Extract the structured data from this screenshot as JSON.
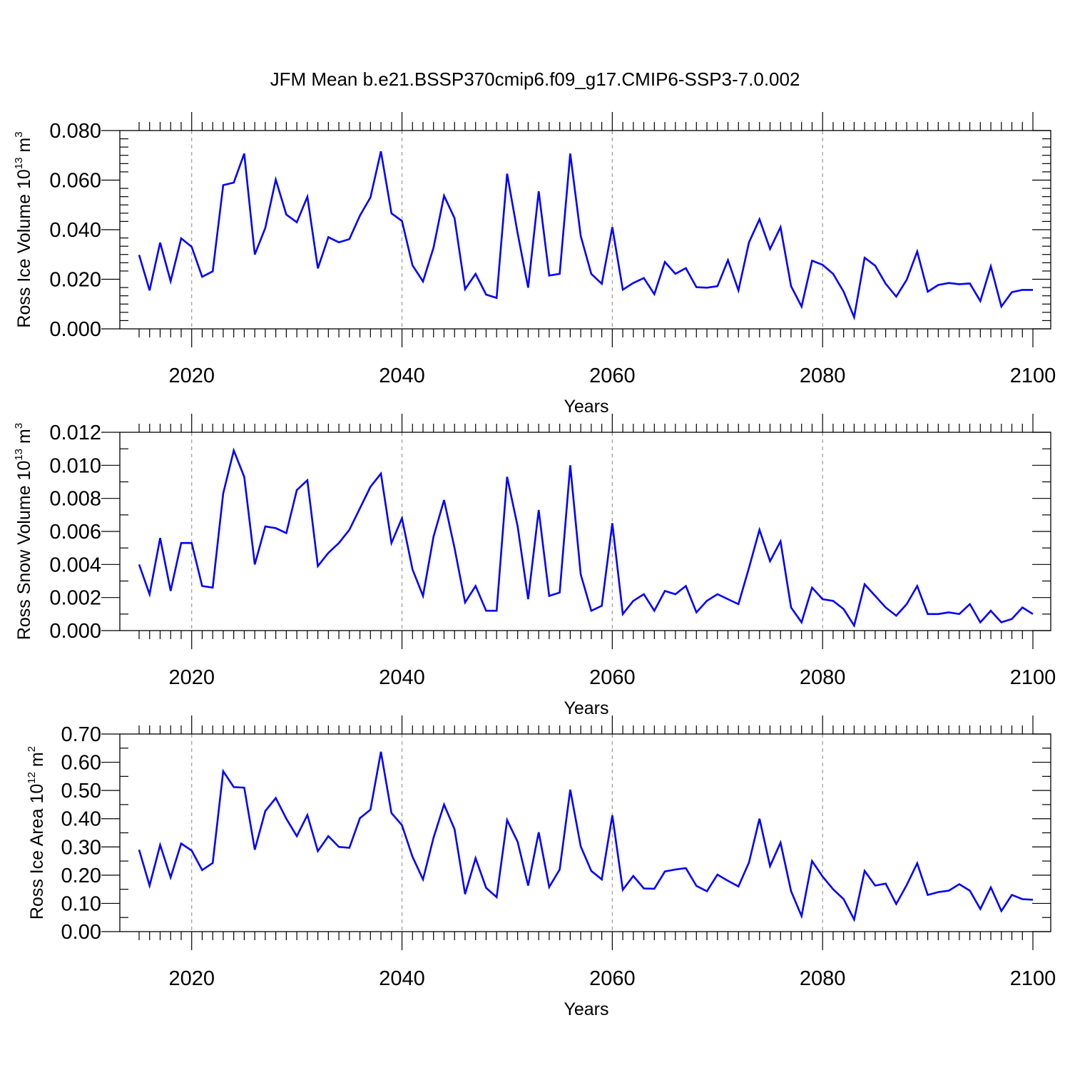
{
  "figure": {
    "title": "JFM Mean b.e21.BSSP370cmip6.f09_g17.CMIP6-SSP3-7.0.002"
  },
  "chart_data": [
    {
      "type": "line",
      "title": "JFM Mean b.e21.BSSP370cmip6.f09_g17.CMIP6-SSP3-7.0.002",
      "xlabel": "Years",
      "ylabel": "Ross Ice Volume 10",
      "ylabel_exponent": "13",
      "ylabel_unit": " m",
      "ylabel_unit_exponent": "3",
      "xlim": [
        2015,
        2100
      ],
      "ylim": [
        0.0,
        0.08
      ],
      "xticks": [
        2020,
        2040,
        2060,
        2080,
        2100
      ],
      "xtick_labels": [
        "2020",
        "2040",
        "2060",
        "2080",
        "2100"
      ],
      "yticks": [
        0.0,
        0.02,
        0.04,
        0.06,
        0.08
      ],
      "ytick_labels": [
        "0.000",
        "0.020",
        "0.040",
        "0.060",
        "0.080"
      ],
      "vertical_grid": "dashed at labeled x ticks",
      "color": "#0000ff",
      "x_start": 2015,
      "values": [
        0.0298,
        0.0155,
        0.0348,
        0.0192,
        0.0365,
        0.0331,
        0.021,
        0.0232,
        0.058,
        0.059,
        0.0707,
        0.03,
        0.0407,
        0.0602,
        0.0461,
        0.043,
        0.0533,
        0.0244,
        0.037,
        0.0349,
        0.0362,
        0.0457,
        0.053,
        0.0716,
        0.0466,
        0.0435,
        0.0256,
        0.0191,
        0.0328,
        0.0537,
        0.0447,
        0.016,
        0.0222,
        0.0138,
        0.0125,
        0.0626,
        0.0385,
        0.0166,
        0.0555,
        0.0215,
        0.0222,
        0.0707,
        0.0375,
        0.0222,
        0.0182,
        0.041,
        0.0158,
        0.0185,
        0.0205,
        0.014,
        0.027,
        0.0222,
        0.0245,
        0.0168,
        0.0166,
        0.0172,
        0.0277,
        0.0155,
        0.0349,
        0.0442,
        0.0322,
        0.041,
        0.0172,
        0.009,
        0.0275,
        0.0258,
        0.0222,
        0.015,
        0.0047,
        0.0287,
        0.0255,
        0.0182,
        0.013,
        0.0198,
        0.0312,
        0.015,
        0.0177,
        0.0185,
        0.018,
        0.0183,
        0.0112,
        0.0252,
        0.009,
        0.0148,
        0.0157,
        0.0157
      ]
    },
    {
      "type": "line",
      "xlabel": "Years",
      "ylabel": "Ross Snow Volume 10",
      "ylabel_exponent": "13",
      "ylabel_unit": " m",
      "ylabel_unit_exponent": "3",
      "xlim": [
        2015,
        2100
      ],
      "ylim": [
        0.0,
        0.012
      ],
      "xticks": [
        2020,
        2040,
        2060,
        2080,
        2100
      ],
      "xtick_labels": [
        "2020",
        "2040",
        "2060",
        "2080",
        "2100"
      ],
      "yticks": [
        0.0,
        0.002,
        0.004,
        0.006,
        0.008,
        0.01,
        0.012
      ],
      "ytick_labels": [
        "0.000",
        "0.002",
        "0.004",
        "0.006",
        "0.008",
        "0.010",
        "0.012"
      ],
      "vertical_grid": "dashed at labeled x ticks",
      "color": "#0000ff",
      "x_start": 2015,
      "values": [
        0.004,
        0.0022,
        0.0056,
        0.0024,
        0.0053,
        0.0053,
        0.0027,
        0.0026,
        0.0083,
        0.0109,
        0.0093,
        0.004,
        0.0063,
        0.0062,
        0.0059,
        0.0085,
        0.0091,
        0.0039,
        0.0047,
        0.0053,
        0.0061,
        0.0074,
        0.0087,
        0.0095,
        0.0053,
        0.0068,
        0.0037,
        0.0021,
        0.0057,
        0.0079,
        0.005,
        0.0017,
        0.0027,
        0.0012,
        0.0012,
        0.0093,
        0.0063,
        0.0019,
        0.0073,
        0.0021,
        0.0023,
        0.01,
        0.0034,
        0.0012,
        0.0015,
        0.0065,
        0.001,
        0.0018,
        0.0022,
        0.0012,
        0.0024,
        0.0022,
        0.0027,
        0.0011,
        0.0018,
        0.0022,
        0.0019,
        0.0016,
        0.0038,
        0.0061,
        0.0042,
        0.0054,
        0.0014,
        0.0005,
        0.0026,
        0.0019,
        0.0018,
        0.0013,
        0.0003,
        0.0028,
        0.0021,
        0.0014,
        0.0009,
        0.0016,
        0.0027,
        0.001,
        0.001,
        0.0011,
        0.001,
        0.0016,
        0.0005,
        0.0012,
        0.0005,
        0.0007,
        0.0014,
        0.001
      ]
    },
    {
      "type": "line",
      "xlabel": "Years",
      "ylabel": "Ross Ice Area 10",
      "ylabel_exponent": "12",
      "ylabel_unit": " m",
      "ylabel_unit_exponent": "2",
      "xlim": [
        2015,
        2100
      ],
      "ylim": [
        0.0,
        0.7
      ],
      "xticks": [
        2020,
        2040,
        2060,
        2080,
        2100
      ],
      "xtick_labels": [
        "2020",
        "2040",
        "2060",
        "2080",
        "2100"
      ],
      "yticks": [
        0.0,
        0.1,
        0.2,
        0.3,
        0.4,
        0.5,
        0.6,
        0.7
      ],
      "ytick_labels": [
        "0.00",
        "0.10",
        "0.20",
        "0.30",
        "0.40",
        "0.50",
        "0.60",
        "0.70"
      ],
      "vertical_grid": "dashed at labeled x ticks",
      "color": "#0000ff",
      "x_start": 2015,
      "values": [
        0.29,
        0.163,
        0.307,
        0.192,
        0.312,
        0.287,
        0.218,
        0.243,
        0.568,
        0.512,
        0.51,
        0.29,
        0.427,
        0.473,
        0.4,
        0.338,
        0.413,
        0.285,
        0.338,
        0.3,
        0.297,
        0.402,
        0.432,
        0.637,
        0.42,
        0.377,
        0.265,
        0.185,
        0.333,
        0.45,
        0.363,
        0.133,
        0.26,
        0.155,
        0.122,
        0.395,
        0.318,
        0.163,
        0.352,
        0.158,
        0.22,
        0.503,
        0.302,
        0.215,
        0.185,
        0.412,
        0.148,
        0.197,
        0.153,
        0.152,
        0.213,
        0.22,
        0.225,
        0.162,
        0.143,
        0.202,
        0.18,
        0.16,
        0.245,
        0.4,
        0.232,
        0.315,
        0.143,
        0.055,
        0.25,
        0.195,
        0.15,
        0.115,
        0.043,
        0.215,
        0.163,
        0.17,
        0.098,
        0.165,
        0.242,
        0.13,
        0.14,
        0.145,
        0.168,
        0.145,
        0.08,
        0.157,
        0.073,
        0.13,
        0.115,
        0.113
      ]
    }
  ]
}
